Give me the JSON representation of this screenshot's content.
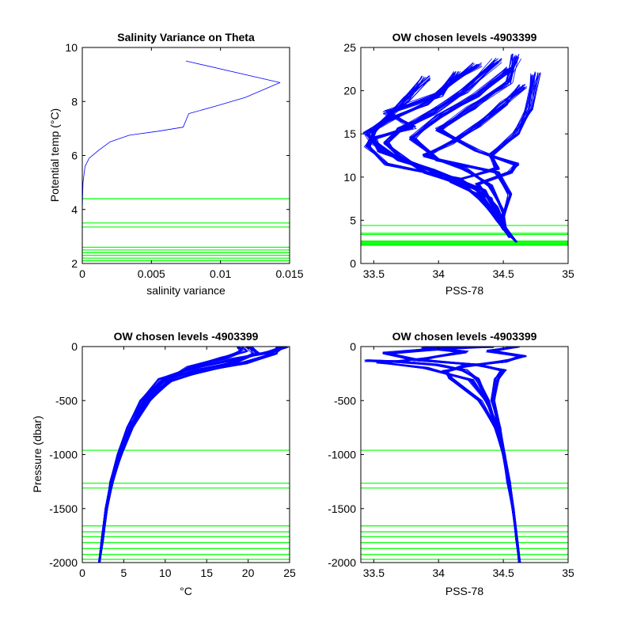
{
  "figure": {
    "colors": {
      "profile": "#0000ff",
      "levels": "#00ff00",
      "axes": "#000000",
      "background": "#ffffff"
    }
  },
  "chart_data": [
    {
      "id": "variance",
      "type": "line",
      "title": "Salinity Variance on Theta",
      "xlabel": "salinity variance",
      "ylabel": "Potential temp (°C)",
      "xlim": [
        0,
        0.015
      ],
      "ylim": [
        2,
        10
      ],
      "xticks": [
        0,
        0.005,
        0.01,
        0.015
      ],
      "yticks": [
        2,
        4,
        6,
        8,
        10
      ],
      "xticklabels": [
        "0",
        "0.005",
        "0.01",
        "0.015"
      ],
      "yticklabels": [
        "2",
        "4",
        "6",
        "8",
        "10"
      ],
      "series": [
        {
          "values": [
            [
              0,
              2.1
            ],
            [
              0,
              4.0
            ],
            [
              5e-05,
              5.0
            ],
            [
              0.0002,
              5.6
            ],
            [
              0.0005,
              5.9
            ],
            [
              0.0012,
              6.2
            ],
            [
              0.002,
              6.5
            ],
            [
              0.0034,
              6.75
            ],
            [
              0.0055,
              6.9
            ],
            [
              0.0073,
              7.05
            ],
            [
              0.0077,
              7.55
            ],
            [
              0.0098,
              7.85
            ],
            [
              0.0118,
              8.15
            ],
            [
              0.0143,
              8.7
            ],
            [
              0.0075,
              9.5
            ]
          ]
        }
      ],
      "hlines": [
        2.1,
        2.2,
        2.3,
        2.4,
        2.5,
        2.6,
        3.35,
        3.5,
        4.4
      ]
    },
    {
      "id": "ts",
      "type": "line",
      "title": "OW chosen levels -4903399",
      "xlabel": "PSS-78",
      "xlim": [
        33.4,
        35
      ],
      "ylim": [
        0,
        25
      ],
      "xticks": [
        33.5,
        34,
        34.5,
        35
      ],
      "yticks": [
        0,
        5,
        10,
        15,
        20,
        25
      ],
      "xticklabels": [
        "33.5",
        "34",
        "34.5",
        "35"
      ],
      "yticklabels": [
        "0",
        "5",
        "10",
        "15",
        "20",
        "25"
      ],
      "series": [
        {
          "values": [
            [
              34.6,
              2.5
            ],
            [
              34.55,
              3.4
            ],
            [
              34.5,
              4.5
            ],
            [
              34.4,
              6.5
            ],
            [
              34.3,
              8.5
            ],
            [
              34.05,
              10.2
            ],
            [
              33.7,
              12.0
            ],
            [
              33.5,
              14.0
            ],
            [
              33.44,
              15.0
            ],
            [
              33.6,
              16.5
            ],
            [
              33.9,
              18.5
            ],
            [
              34.1,
              21.0
            ],
            [
              34.3,
              23.0
            ]
          ]
        },
        {
          "values": [
            [
              34.6,
              2.5
            ],
            [
              34.52,
              3.8
            ],
            [
              34.5,
              5.5
            ],
            [
              34.55,
              8.0
            ],
            [
              34.45,
              10.5
            ],
            [
              34.0,
              12.0
            ],
            [
              33.8,
              14.5
            ],
            [
              34.0,
              17.0
            ],
            [
              34.3,
              19.5
            ],
            [
              34.55,
              22.5
            ]
          ]
        },
        {
          "values": [
            [
              34.6,
              2.5
            ],
            [
              34.5,
              4.0
            ],
            [
              34.42,
              6.0
            ],
            [
              34.3,
              8.0
            ],
            [
              34.1,
              9.5
            ],
            [
              34.45,
              11.0
            ],
            [
              34.4,
              12.5
            ],
            [
              34.6,
              15.0
            ],
            [
              34.7,
              18.0
            ],
            [
              34.75,
              22.0
            ]
          ]
        },
        {
          "values": [
            [
              34.55,
              3.0
            ],
            [
              34.45,
              5.0
            ],
            [
              34.35,
              7.0
            ],
            [
              34.2,
              9.0
            ],
            [
              33.9,
              10.5
            ],
            [
              33.7,
              12.5
            ],
            [
              33.6,
              14.0
            ],
            [
              33.7,
              15.5
            ],
            [
              33.95,
              17.5
            ],
            [
              34.2,
              20.0
            ],
            [
              34.45,
              23.5
            ]
          ]
        },
        {
          "values": [
            [
              34.6,
              2.5
            ],
            [
              34.5,
              4.2
            ],
            [
              34.5,
              6.0
            ],
            [
              34.4,
              9.0
            ],
            [
              34.2,
              11.0
            ],
            [
              33.9,
              12.5
            ],
            [
              34.1,
              14.0
            ],
            [
              34.3,
              16.0
            ],
            [
              34.5,
              18.5
            ],
            [
              34.65,
              20.5
            ]
          ]
        },
        {
          "values": [
            [
              34.58,
              2.8
            ],
            [
              34.48,
              4.5
            ],
            [
              34.4,
              7.5
            ],
            [
              34.15,
              9.8
            ],
            [
              33.6,
              11.5
            ],
            [
              33.45,
              13.5
            ],
            [
              33.5,
              15.5
            ],
            [
              33.75,
              19.0
            ],
            [
              33.9,
              21.5
            ]
          ]
        },
        {
          "values": [
            [
              34.6,
              2.5
            ],
            [
              34.52,
              4.0
            ],
            [
              34.45,
              6.5
            ],
            [
              34.3,
              9.2
            ],
            [
              34.55,
              10.5
            ],
            [
              34.6,
              11.5
            ],
            [
              34.3,
              13.0
            ],
            [
              34.0,
              15.5
            ],
            [
              34.25,
              18.0
            ],
            [
              34.55,
              21.0
            ],
            [
              34.6,
              24.0
            ]
          ]
        },
        {
          "values": [
            [
              34.6,
              2.5
            ],
            [
              34.5,
              4.5
            ],
            [
              34.35,
              8.5
            ],
            [
              33.95,
              10.8
            ],
            [
              33.55,
              13.0
            ],
            [
              33.5,
              14.5
            ],
            [
              33.8,
              15.8
            ],
            [
              33.6,
              17.5
            ],
            [
              34.0,
              19.5
            ],
            [
              34.15,
              22.0
            ]
          ]
        }
      ],
      "hlines": [
        2.1,
        2.2,
        2.3,
        2.4,
        2.5,
        2.6,
        3.35,
        3.5,
        4.4
      ]
    },
    {
      "id": "pt",
      "type": "line",
      "title": "OW chosen levels -4903399",
      "xlabel": "°C",
      "ylabel": "Pressure (dbar)",
      "xlim": [
        0,
        25
      ],
      "ylim": [
        -2000,
        0
      ],
      "xticks": [
        0,
        5,
        10,
        15,
        20,
        25
      ],
      "yticks": [
        -2000,
        -1500,
        -1000,
        -500,
        0
      ],
      "xticklabels": [
        "0",
        "5",
        "10",
        "15",
        "20",
        "25"
      ],
      "yticklabels": [
        "-2000",
        "-1500",
        "-1000",
        "-500",
        "0"
      ],
      "series": [
        {
          "values": [
            [
              2.0,
              -2000
            ],
            [
              2.3,
              -1800
            ],
            [
              2.8,
              -1500
            ],
            [
              3.4,
              -1250
            ],
            [
              4.3,
              -1000
            ],
            [
              5.5,
              -750
            ],
            [
              7.2,
              -500
            ],
            [
              9.5,
              -300
            ],
            [
              13.5,
              -200
            ],
            [
              18.0,
              -120
            ],
            [
              22.0,
              -60
            ],
            [
              24.5,
              0
            ]
          ]
        },
        {
          "values": [
            [
              2.1,
              -2000
            ],
            [
              2.5,
              -1800
            ],
            [
              3.0,
              -1500
            ],
            [
              3.7,
              -1250
            ],
            [
              4.7,
              -1000
            ],
            [
              6.0,
              -750
            ],
            [
              8.0,
              -500
            ],
            [
              10.5,
              -320
            ],
            [
              14.5,
              -230
            ],
            [
              19.5,
              -150
            ],
            [
              23.0,
              -70
            ],
            [
              24.0,
              0
            ]
          ]
        },
        {
          "values": [
            [
              2.0,
              -2000
            ],
            [
              2.4,
              -1800
            ],
            [
              2.9,
              -1500
            ],
            [
              3.5,
              -1250
            ],
            [
              4.5,
              -1000
            ],
            [
              5.8,
              -750
            ],
            [
              7.6,
              -500
            ],
            [
              10.0,
              -310
            ],
            [
              14.0,
              -215
            ],
            [
              18.5,
              -140
            ],
            [
              21.0,
              -60
            ],
            [
              20.0,
              0
            ]
          ]
        },
        {
          "values": [
            [
              2.1,
              -2000
            ],
            [
              2.4,
              -1800
            ],
            [
              2.9,
              -1500
            ],
            [
              3.6,
              -1250
            ],
            [
              4.6,
              -1000
            ],
            [
              5.9,
              -750
            ],
            [
              7.8,
              -500
            ],
            [
              10.2,
              -305
            ],
            [
              13.0,
              -190
            ],
            [
              17.0,
              -110
            ],
            [
              19.5,
              -40
            ],
            [
              19.0,
              0
            ]
          ]
        }
      ],
      "hlines": [
        -960,
        -1265,
        -1310,
        -1660,
        -1715,
        -1760,
        -1815,
        -1870,
        -1925,
        -1970
      ]
    },
    {
      "id": "ps",
      "type": "line",
      "title": "OW chosen levels -4903399",
      "xlabel": "PSS-78",
      "xlim": [
        33.4,
        35
      ],
      "ylim": [
        -2000,
        0
      ],
      "xticks": [
        33.5,
        34,
        34.5,
        35
      ],
      "yticks": [
        -2000,
        -1500,
        -1000,
        -500,
        0
      ],
      "xticklabels": [
        "33.5",
        "34",
        "34.5",
        "35"
      ],
      "yticklabels": [
        "-2000",
        "-1500",
        "-1000",
        "-500",
        "0"
      ],
      "series": [
        {
          "values": [
            [
              34.62,
              -2000
            ],
            [
              34.6,
              -1800
            ],
            [
              34.57,
              -1500
            ],
            [
              34.53,
              -1250
            ],
            [
              34.5,
              -1000
            ],
            [
              34.45,
              -750
            ],
            [
              34.38,
              -500
            ],
            [
              34.3,
              -300
            ],
            [
              34.2,
              -220
            ],
            [
              34.0,
              -170
            ],
            [
              33.7,
              -140
            ],
            [
              33.45,
              -130
            ]
          ]
        },
        {
          "values": [
            [
              34.63,
              -2000
            ],
            [
              34.61,
              -1800
            ],
            [
              34.58,
              -1500
            ],
            [
              34.55,
              -1250
            ],
            [
              34.51,
              -1000
            ],
            [
              34.47,
              -750
            ],
            [
              34.42,
              -500
            ],
            [
              34.45,
              -300
            ],
            [
              34.5,
              -220
            ],
            [
              34.3,
              -170
            ],
            [
              33.8,
              -120
            ],
            [
              33.6,
              -60
            ],
            [
              34.0,
              -20
            ],
            [
              34.4,
              0
            ]
          ]
        },
        {
          "values": [
            [
              34.62,
              -2000
            ],
            [
              34.6,
              -1800
            ],
            [
              34.57,
              -1500
            ],
            [
              34.54,
              -1250
            ],
            [
              34.5,
              -1000
            ],
            [
              34.44,
              -750
            ],
            [
              34.32,
              -500
            ],
            [
              34.1,
              -300
            ],
            [
              34.05,
              -230
            ],
            [
              34.2,
              -180
            ],
            [
              34.5,
              -140
            ],
            [
              34.65,
              -90
            ],
            [
              34.4,
              -40
            ],
            [
              34.6,
              0
            ]
          ]
        },
        {
          "values": [
            [
              34.63,
              -2000
            ],
            [
              34.6,
              -1800
            ],
            [
              34.58,
              -1500
            ],
            [
              34.54,
              -1250
            ],
            [
              34.51,
              -1000
            ],
            [
              34.46,
              -750
            ],
            [
              34.37,
              -500
            ],
            [
              34.25,
              -310
            ],
            [
              33.9,
              -200
            ],
            [
              33.55,
              -150
            ],
            [
              33.9,
              -110
            ],
            [
              34.2,
              -50
            ],
            [
              33.9,
              -10
            ],
            [
              34.1,
              0
            ]
          ]
        }
      ],
      "hlines": [
        -960,
        -1265,
        -1310,
        -1660,
        -1715,
        -1760,
        -1815,
        -1870,
        -1925,
        -1970
      ]
    }
  ]
}
